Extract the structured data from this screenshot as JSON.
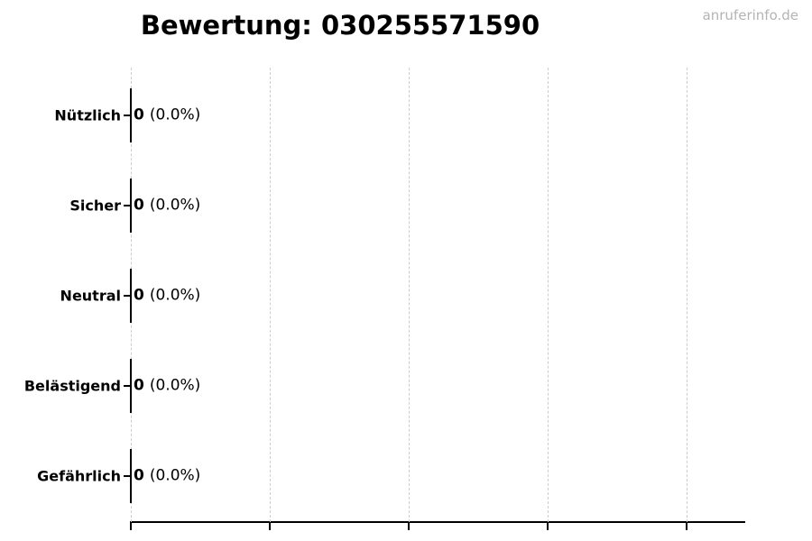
{
  "header": {
    "title": "Bewertung: 030255571590",
    "watermark": "anruferinfo.de"
  },
  "chart_data": {
    "type": "bar",
    "orientation": "horizontal",
    "title": "Bewertung: 030255571590",
    "categories": [
      "Nützlich",
      "Sicher",
      "Neutral",
      "Belästigend",
      "Gefährlich"
    ],
    "values": [
      0,
      0,
      0,
      0,
      0
    ],
    "percentages": [
      0.0,
      0.0,
      0.0,
      0.0,
      0.0
    ],
    "bar_labels": [
      {
        "count": "0",
        "percent": "(0.0%)"
      },
      {
        "count": "0",
        "percent": "(0.0%)"
      },
      {
        "count": "0",
        "percent": "(0.0%)"
      },
      {
        "count": "0",
        "percent": "(0.0%)"
      },
      {
        "count": "0",
        "percent": "(0.0%)"
      }
    ],
    "xlabel": "",
    "ylabel": "",
    "x_axis": {
      "tick_count": 5,
      "tick_labels": [],
      "gridlines": "vertical dashed"
    },
    "legend": "none",
    "colors": {
      "bar_edge": "#000000",
      "axis": "#000000",
      "gridline": "#cccccc",
      "text": "#000000",
      "watermark": "#b4b4b4",
      "background": "#ffffff"
    }
  }
}
